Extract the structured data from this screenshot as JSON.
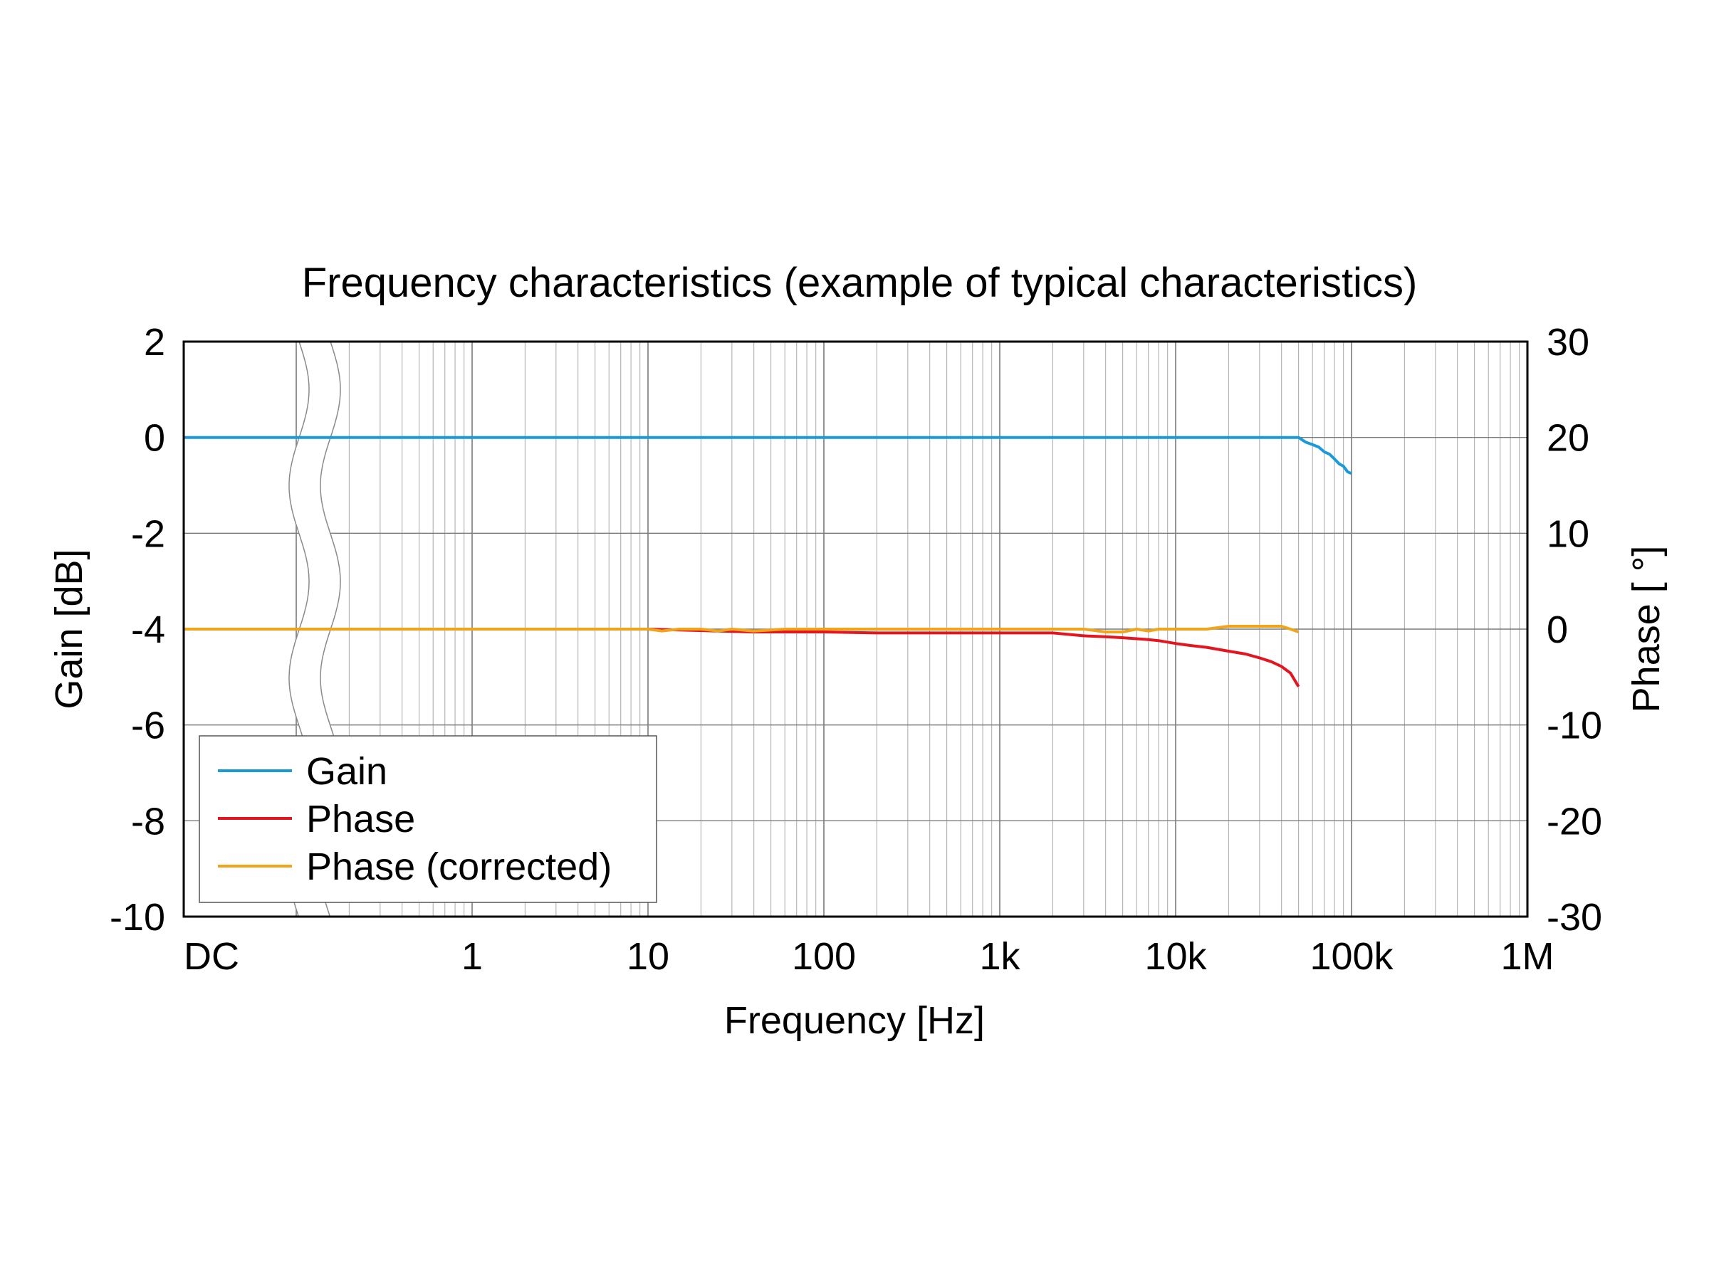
{
  "chart_data": {
    "type": "line",
    "title": "Frequency characteristics (example of typical characteristics)",
    "xlabel": "Frequency [Hz]",
    "ylabel": "Gain [dB]",
    "y2label": "Phase [ °]",
    "xscale": "log, with broken-axis DC segment",
    "xlim": [
      0.1,
      1000000
    ],
    "ylim": [
      -10,
      2
    ],
    "y2lim": [
      -30,
      30
    ],
    "grid": true,
    "legend_position": "bottom-left",
    "x_tick_labels": [
      {
        "value": "DC",
        "label": "DC"
      },
      {
        "value": 1,
        "label": "1"
      },
      {
        "value": 10,
        "label": "10"
      },
      {
        "value": 100,
        "label": "100"
      },
      {
        "value": 1000,
        "label": "1k"
      },
      {
        "value": 10000,
        "label": "10k"
      },
      {
        "value": 100000,
        "label": "100k"
      },
      {
        "value": 1000000,
        "label": "1M"
      }
    ],
    "y_ticks": [
      -10,
      -8,
      -6,
      -4,
      -2,
      0,
      2
    ],
    "y2_ticks": [
      -30,
      -20,
      -10,
      0,
      10,
      20,
      30
    ],
    "series": [
      {
        "name": "Gain",
        "axis": "left",
        "color": "#1a9bd7",
        "dc_value": 0,
        "x": [
          1,
          10,
          100,
          1000,
          10000,
          40000,
          50000,
          55000,
          60000,
          65000,
          70000,
          75000,
          80000,
          85000,
          90000,
          95000,
          100000
        ],
        "y": [
          0,
          0,
          0,
          0,
          0,
          0,
          0,
          -0.1,
          -0.15,
          -0.2,
          -0.3,
          -0.35,
          -0.45,
          -0.55,
          -0.6,
          -0.72,
          -0.75
        ]
      },
      {
        "name": "Phase",
        "axis": "right",
        "color": "#e3151f",
        "dc_value": 0,
        "x": [
          1,
          10,
          25,
          40,
          60,
          100,
          200,
          500,
          1000,
          2000,
          3000,
          4000,
          5000,
          6000,
          7000,
          8000,
          10000,
          12000,
          15000,
          20000,
          25000,
          30000,
          35000,
          40000,
          45000,
          50000
        ],
        "y": [
          0,
          0,
          -0.2,
          -0.3,
          -0.3,
          -0.3,
          -0.4,
          -0.4,
          -0.4,
          -0.4,
          -0.7,
          -0.8,
          -0.9,
          -1.0,
          -1.1,
          -1.2,
          -1.5,
          -1.7,
          -1.9,
          -2.3,
          -2.6,
          -3.0,
          -3.4,
          -3.9,
          -4.6,
          -6.0
        ]
      },
      {
        "name": "Phase (corrected)",
        "axis": "right",
        "color": "#f0a41c",
        "dc_value": 0,
        "x": [
          1,
          10,
          12,
          15,
          20,
          25,
          30,
          40,
          60,
          100,
          200,
          500,
          1000,
          2000,
          3000,
          4000,
          5000,
          6000,
          7000,
          8000,
          10000,
          15000,
          20000,
          25000,
          30000,
          40000,
          45000,
          50000
        ],
        "y": [
          0,
          0,
          -0.2,
          0,
          0,
          -0.2,
          0,
          -0.2,
          0,
          0,
          0,
          0,
          0,
          0,
          0,
          -0.3,
          -0.3,
          0,
          -0.2,
          0,
          0,
          0,
          0.3,
          0.3,
          0.3,
          0.3,
          0,
          -0.3
        ]
      }
    ]
  }
}
